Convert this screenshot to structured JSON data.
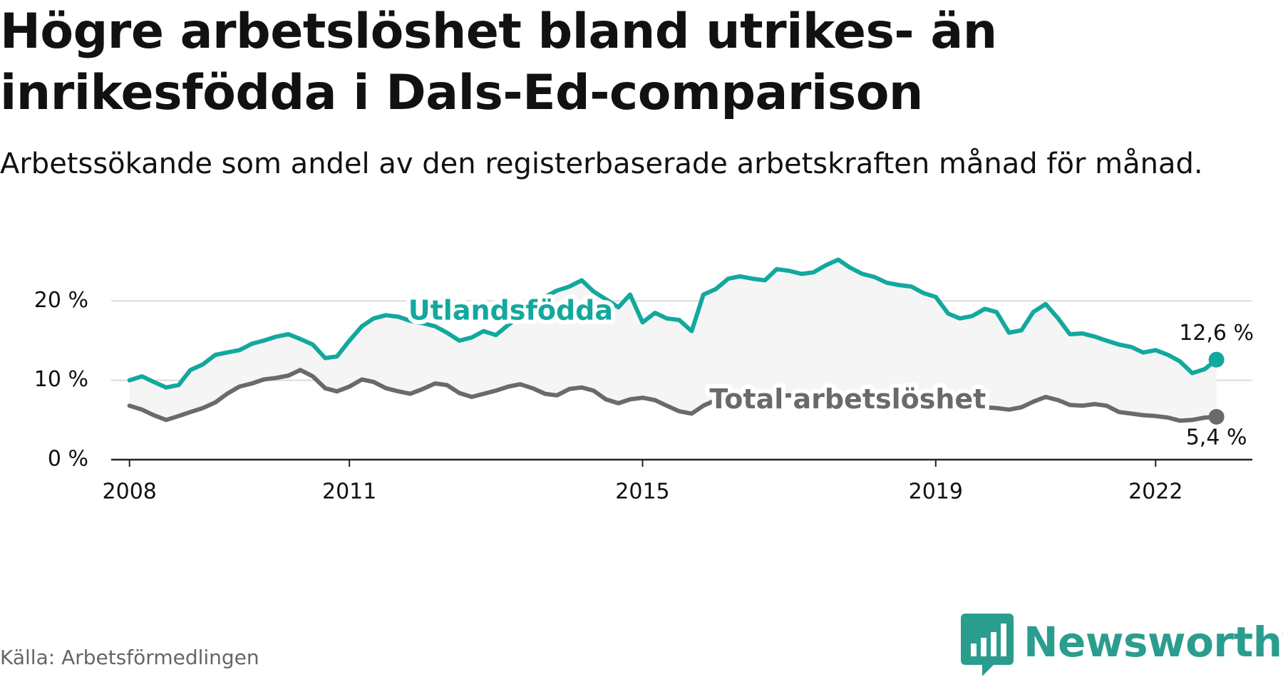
{
  "title": "Högre arbetslöshet bland utrikes- än inrikesfödda i Dals-Ed-comparison",
  "subtitle": "Arbetssökande som andel av den registerbaserade arbetskraften månad för månad.",
  "source": "Källa: Arbetsförmedlingen",
  "brand": {
    "name": "Newsworthy",
    "icon": "newsworthy-logo-icon",
    "color": "#2a9d8f"
  },
  "chart_data": {
    "type": "line",
    "title": "Högre arbetslöshet bland utrikes- än inrikesfödda i Dals-Ed-comparison",
    "xlabel": "",
    "ylabel": "",
    "xlim": [
      2007.75,
      2023.3
    ],
    "ylim": [
      0,
      22
    ],
    "grid": true,
    "x_ticks": [
      {
        "value": 2008,
        "label": "2008"
      },
      {
        "value": 2011,
        "label": "2011"
      },
      {
        "value": 2015,
        "label": "2015"
      },
      {
        "value": 2019,
        "label": "2019"
      },
      {
        "value": 2022,
        "label": "2022"
      }
    ],
    "y_ticks": [
      {
        "value": 0,
        "label": "0 %"
      },
      {
        "value": 10,
        "label": "10 %"
      },
      {
        "value": 20,
        "label": "20 %"
      }
    ],
    "series": [
      {
        "name": "Utlandsfödda",
        "color": "#13a89e",
        "label": "Utlandsfödda",
        "end_label": "12,6 %",
        "points": [
          [
            2008.0,
            10.0
          ],
          [
            2008.17,
            10.5
          ],
          [
            2008.33,
            9.8
          ],
          [
            2008.5,
            9.1
          ],
          [
            2008.67,
            9.4
          ],
          [
            2008.83,
            11.3
          ],
          [
            2009.0,
            12.0
          ],
          [
            2009.17,
            13.2
          ],
          [
            2009.33,
            13.5
          ],
          [
            2009.5,
            13.8
          ],
          [
            2009.67,
            14.6
          ],
          [
            2009.83,
            15.0
          ],
          [
            2010.0,
            15.5
          ],
          [
            2010.17,
            15.8
          ],
          [
            2010.33,
            15.2
          ],
          [
            2010.5,
            14.5
          ],
          [
            2010.67,
            12.8
          ],
          [
            2010.83,
            13.0
          ],
          [
            2011.0,
            15.0
          ],
          [
            2011.17,
            16.8
          ],
          [
            2011.33,
            17.8
          ],
          [
            2011.5,
            18.2
          ],
          [
            2011.67,
            18.0
          ],
          [
            2011.83,
            17.5
          ],
          [
            2012.0,
            17.2
          ],
          [
            2012.17,
            16.8
          ],
          [
            2012.33,
            16.0
          ],
          [
            2012.5,
            15.0
          ],
          [
            2012.67,
            15.4
          ],
          [
            2012.83,
            16.2
          ],
          [
            2013.0,
            15.7
          ],
          [
            2013.17,
            17.0
          ],
          [
            2013.33,
            18.0
          ],
          [
            2013.5,
            19.2
          ],
          [
            2013.67,
            20.5
          ],
          [
            2013.83,
            21.3
          ],
          [
            2014.0,
            21.8
          ],
          [
            2014.17,
            22.6
          ],
          [
            2014.33,
            21.2
          ],
          [
            2014.5,
            20.2
          ],
          [
            2014.67,
            19.2
          ],
          [
            2014.83,
            20.8
          ],
          [
            2015.0,
            17.3
          ],
          [
            2015.17,
            18.5
          ],
          [
            2015.33,
            17.8
          ],
          [
            2015.5,
            17.6
          ],
          [
            2015.67,
            16.2
          ],
          [
            2015.83,
            20.8
          ],
          [
            2016.0,
            21.5
          ],
          [
            2016.17,
            22.8
          ],
          [
            2016.33,
            23.1
          ],
          [
            2016.5,
            22.8
          ],
          [
            2016.67,
            22.6
          ],
          [
            2016.83,
            24.0
          ],
          [
            2017.0,
            23.8
          ],
          [
            2017.17,
            23.4
          ],
          [
            2017.33,
            23.6
          ],
          [
            2017.5,
            24.5
          ],
          [
            2017.67,
            25.2
          ],
          [
            2017.83,
            24.2
          ],
          [
            2018.0,
            23.4
          ],
          [
            2018.17,
            23.0
          ],
          [
            2018.33,
            22.3
          ],
          [
            2018.5,
            22.0
          ],
          [
            2018.67,
            21.8
          ],
          [
            2018.83,
            21.0
          ],
          [
            2019.0,
            20.5
          ],
          [
            2019.17,
            18.4
          ],
          [
            2019.33,
            17.8
          ],
          [
            2019.5,
            18.1
          ],
          [
            2019.67,
            19.0
          ],
          [
            2019.83,
            18.6
          ],
          [
            2020.0,
            16.0
          ],
          [
            2020.17,
            16.3
          ],
          [
            2020.33,
            18.6
          ],
          [
            2020.5,
            19.6
          ],
          [
            2020.67,
            17.8
          ],
          [
            2020.83,
            15.8
          ],
          [
            2021.0,
            15.9
          ],
          [
            2021.17,
            15.5
          ],
          [
            2021.33,
            15.0
          ],
          [
            2021.5,
            14.5
          ],
          [
            2021.67,
            14.2
          ],
          [
            2021.83,
            13.5
          ],
          [
            2022.0,
            13.8
          ],
          [
            2022.17,
            13.2
          ],
          [
            2022.33,
            12.4
          ],
          [
            2022.5,
            10.9
          ],
          [
            2022.67,
            11.4
          ],
          [
            2022.83,
            12.6
          ]
        ]
      },
      {
        "name": "Total arbetslöshet",
        "color": "#6b686e",
        "label": "Total arbetslöshet",
        "end_label": "5,4 %",
        "points": [
          [
            2008.0,
            6.8
          ],
          [
            2008.17,
            6.3
          ],
          [
            2008.33,
            5.6
          ],
          [
            2008.5,
            5.0
          ],
          [
            2008.67,
            5.5
          ],
          [
            2008.83,
            6.0
          ],
          [
            2009.0,
            6.5
          ],
          [
            2009.17,
            7.2
          ],
          [
            2009.33,
            8.3
          ],
          [
            2009.5,
            9.2
          ],
          [
            2009.67,
            9.6
          ],
          [
            2009.83,
            10.1
          ],
          [
            2010.0,
            10.3
          ],
          [
            2010.17,
            10.6
          ],
          [
            2010.33,
            11.3
          ],
          [
            2010.5,
            10.5
          ],
          [
            2010.67,
            9.0
          ],
          [
            2010.83,
            8.6
          ],
          [
            2011.0,
            9.2
          ],
          [
            2011.17,
            10.1
          ],
          [
            2011.33,
            9.8
          ],
          [
            2011.5,
            9.0
          ],
          [
            2011.67,
            8.6
          ],
          [
            2011.83,
            8.3
          ],
          [
            2012.0,
            8.9
          ],
          [
            2012.17,
            9.6
          ],
          [
            2012.33,
            9.4
          ],
          [
            2012.5,
            8.4
          ],
          [
            2012.67,
            7.9
          ],
          [
            2012.83,
            8.3
          ],
          [
            2013.0,
            8.7
          ],
          [
            2013.17,
            9.2
          ],
          [
            2013.33,
            9.5
          ],
          [
            2013.5,
            9.0
          ],
          [
            2013.67,
            8.3
          ],
          [
            2013.83,
            8.1
          ],
          [
            2014.0,
            8.9
          ],
          [
            2014.17,
            9.1
          ],
          [
            2014.33,
            8.7
          ],
          [
            2014.5,
            7.6
          ],
          [
            2014.67,
            7.1
          ],
          [
            2014.83,
            7.6
          ],
          [
            2015.0,
            7.8
          ],
          [
            2015.17,
            7.5
          ],
          [
            2015.33,
            6.8
          ],
          [
            2015.5,
            6.1
          ],
          [
            2015.67,
            5.8
          ],
          [
            2015.83,
            6.8
          ],
          [
            2016.0,
            7.5
          ],
          [
            2016.17,
            7.9
          ],
          [
            2016.33,
            8.2
          ],
          [
            2016.5,
            8.1
          ],
          [
            2016.67,
            8.0
          ],
          [
            2016.83,
            8.0
          ],
          [
            2017.0,
            8.1
          ],
          [
            2017.17,
            8.0
          ],
          [
            2017.33,
            7.9
          ],
          [
            2017.5,
            7.8
          ],
          [
            2017.67,
            7.7
          ],
          [
            2017.83,
            7.6
          ],
          [
            2018.0,
            7.5
          ],
          [
            2018.17,
            7.4
          ],
          [
            2018.33,
            7.3
          ],
          [
            2018.5,
            7.3
          ],
          [
            2018.67,
            7.2
          ],
          [
            2018.83,
            7.1
          ],
          [
            2019.0,
            7.0
          ],
          [
            2019.17,
            6.9
          ],
          [
            2019.33,
            6.8
          ],
          [
            2019.5,
            6.7
          ],
          [
            2019.67,
            6.6
          ],
          [
            2019.83,
            6.5
          ],
          [
            2020.0,
            6.3
          ],
          [
            2020.17,
            6.6
          ],
          [
            2020.33,
            7.3
          ],
          [
            2020.5,
            7.9
          ],
          [
            2020.67,
            7.5
          ],
          [
            2020.83,
            6.9
          ],
          [
            2021.0,
            6.8
          ],
          [
            2021.17,
            7.0
          ],
          [
            2021.33,
            6.8
          ],
          [
            2021.5,
            6.0
          ],
          [
            2021.67,
            5.8
          ],
          [
            2021.83,
            5.6
          ],
          [
            2022.0,
            5.5
          ],
          [
            2022.17,
            5.3
          ],
          [
            2022.33,
            4.9
          ],
          [
            2022.5,
            5.0
          ],
          [
            2022.67,
            5.3
          ],
          [
            2022.83,
            5.4
          ]
        ]
      }
    ]
  }
}
